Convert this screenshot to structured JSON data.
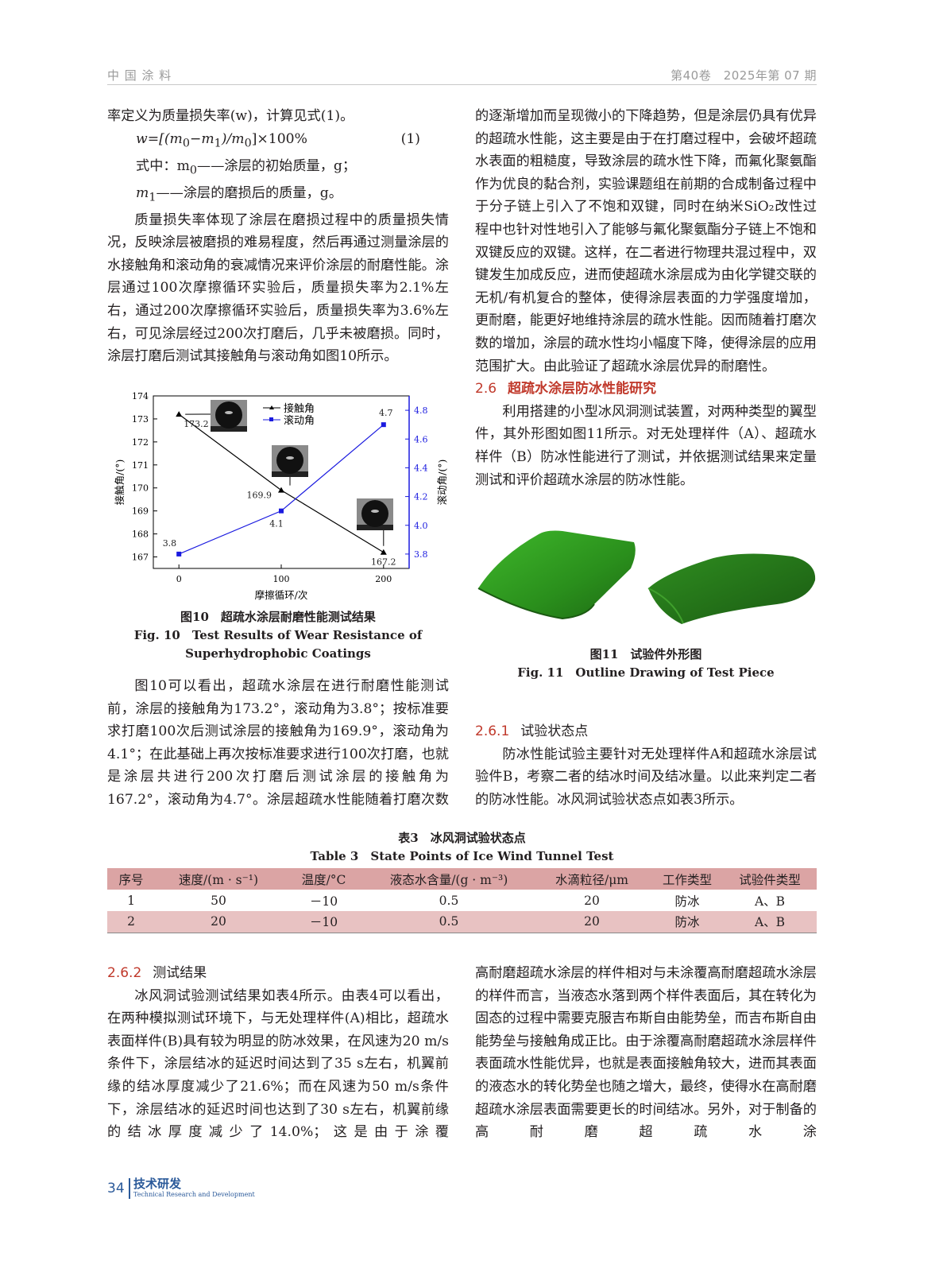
{
  "header": {
    "journal": "中 国 涂 料",
    "issue": "第40卷　2025年第 07 期"
  },
  "left_top": {
    "p1": "率定义为质量损失率(w)，计算见式(1)。",
    "formula": {
      "a": "w=[(m",
      "s1": "0",
      "b": "−m",
      "s2": "1",
      "c": ")/m",
      "s3": "0",
      "d": "]×100%",
      "num": "(1)"
    },
    "def1": {
      "a": "式中：m",
      "s": "0",
      "b": "——涂层的初始质量，g；"
    },
    "def2": {
      "a": "m",
      "s": "1",
      "b": "——涂层的磨损后的质量，g。"
    },
    "p2": "质量损失率体现了涂层在磨损过程中的质量损失情况，反映涂层被磨损的难易程度，然后再通过测量涂层的水接触角和滚动角的衰减情况来评价涂层的耐磨性能。涂层通过100次摩擦循环实验后，质量损失率为2.1%左右，通过200次摩擦循环实验后，质量损失率为3.6%左右，可见涂层经过200次打磨后，几乎未被磨损。同时，涂层打磨后测试其接触角与滚动角如图10所示。"
  },
  "chart_data": {
    "type": "line",
    "x": [
      0,
      100,
      200
    ],
    "xlabel": "摩擦循环/次",
    "xticks": [
      "0",
      "100",
      "200"
    ],
    "xlim": [
      -25,
      225
    ],
    "series": [
      {
        "name": "接触角",
        "axis": "left",
        "values": [
          173.2,
          169.9,
          167.2
        ],
        "labels": [
          "173.2",
          "169.9",
          "167.2"
        ],
        "color": "#000000",
        "marker": "triangle"
      },
      {
        "name": "滚动角",
        "axis": "right",
        "values": [
          3.8,
          4.1,
          4.7
        ],
        "labels": [
          "3.8",
          "4.1",
          "4.7"
        ],
        "color": "#1a1adf",
        "marker": "square"
      }
    ],
    "ylabel_left": "接触角/(°)",
    "ylim_left": [
      166.5,
      174
    ],
    "yticks_left": [
      "167",
      "168",
      "169",
      "170",
      "171",
      "172",
      "173",
      "174"
    ],
    "ylabel_right": "滚动角/(°)",
    "ylim_right": [
      3.7,
      4.9
    ],
    "yticks_right": [
      "3.8",
      "4.0",
      "4.2",
      "4.4",
      "4.6",
      "4.8"
    ],
    "legend": "top-center",
    "grid": false
  },
  "fig10": {
    "cn": "图10　超疏水涂层耐磨性能测试结果",
    "en1": "Fig. 10　Test Results of Wear Resistance of",
    "en2": "Superhydrophobic Coatings"
  },
  "left_mid": {
    "p": "图10可以看出，超疏水涂层在进行耐磨性能测试前，涂层的接触角为173.2°，滚动角为3.8°；按标准要求打磨100次后测试涂层的接触角为169.9°，滚动角为4.1°；在此基础上再次按标准要求进行100次打磨，也就是涂层共进行200次打磨后测试涂层的接触角为167.2°，滚动角为4.7°。涂层超疏水性能随着打磨次数"
  },
  "right_top": {
    "p1": "的逐渐增加而呈现微小的下降趋势，但是涂层仍具有优异的超疏水性能，这主要是由于在打磨过程中，会破坏超疏水表面的粗糙度，导致涂层的疏水性下降，而氟化聚氨酯作为优良的黏合剂，实验课题组在前期的合成制备过程中于分子链上引入了不饱和双键，同时在纳米SiO₂改性过程中也针对性地引入了能够与氟化聚氨酯分子链上不饱和双键反应的双键。这样，在二者进行物理共混过程中，双键发生加成反应，进而使超疏水涂层成为由化学键交联的无机/有机复合的整体，使得涂层表面的力学强度增加，更耐磨，能更好地维持涂层的疏水性能。因而随着打磨次数的增加，涂层的疏水性均小幅度下降，使得涂层的应用范围扩大。由此验证了超疏水涂层优异的耐磨性。",
    "sec_num": "2.6",
    "sec_title": "超疏水涂层防冰性能研究",
    "p2": "利用搭建的小型冰风洞测试装置，对两种类型的翼型件，其外形图如图11所示。对无处理样件（A）、超疏水样件（B）防冰性能进行了测试，并依据测试结果来定量测试和评价超疏水涂层的防冰性能。"
  },
  "fig11": {
    "cn": "图11　试验件外形图",
    "en": "Fig. 11　Outline Drawing of Test Piece",
    "color": "#2f9a1f"
  },
  "right_mid": {
    "sec_num": "2.6.1",
    "sec_title": "试验状态点",
    "p": "防冰性能试验主要针对无处理样件A和超疏水涂层试验件B，考察二者的结冰时间及结冰量。以此来判定二者的防冰性能。冰风洞试验状态点如表3所示。"
  },
  "table3": {
    "cn": "表3　冰风洞试验状态点",
    "en": "Table 3　State Points of Ice Wind Tunnel Test",
    "headers": [
      "序号",
      "速度/(m · s⁻¹)",
      "温度/°C",
      "液态水含量/(g · m⁻³)",
      "水滴粒径/μm",
      "工作类型",
      "试验件类型"
    ],
    "rows": [
      [
        "1",
        "50",
        "－10",
        "0.5",
        "20",
        "防冰",
        "A、B"
      ],
      [
        "2",
        "20",
        "－10",
        "0.5",
        "20",
        "防冰",
        "A、B"
      ]
    ]
  },
  "bottom_left": {
    "sec_num": "2.6.2",
    "sec_title": "测试结果",
    "p": "冰风洞试验测试结果如表4所示。由表4可以看出，在两种模拟测试环境下，与无处理样件(A)相比，超疏水表面样件(B)具有较为明显的防冰效果，在风速为20 m/s条件下，涂层结冰的延迟时间达到了35 s左右，机翼前缘的结冰厚度减少了21.6%；而在风速为50 m/s条件下，涂层结冰的延迟时间也达到了30 s左右，机翼前缘的结冰厚度减少了14.0%；这是由于涂覆"
  },
  "bottom_right": {
    "p": "高耐磨超疏水涂层的样件相对与未涂覆高耐磨超疏水涂层的样件而言，当液态水落到两个样件表面后，其在转化为固态的过程中需要克服吉布斯自由能势垒，而吉布斯自由能势垒与接触角成正比。由于涂覆高耐磨超疏水涂层样件表面疏水性能优异，也就是表面接触角较大，进而其表面的液态水的转化势垒也随之增大，最终，使得水在高耐磨超疏水涂层表面需要更长的时间结冰。另外，对于制备的高耐磨超疏水涂"
  },
  "footer": {
    "page": "34",
    "section_cn": "技术研发",
    "section_en": "Technical Research and Development"
  }
}
